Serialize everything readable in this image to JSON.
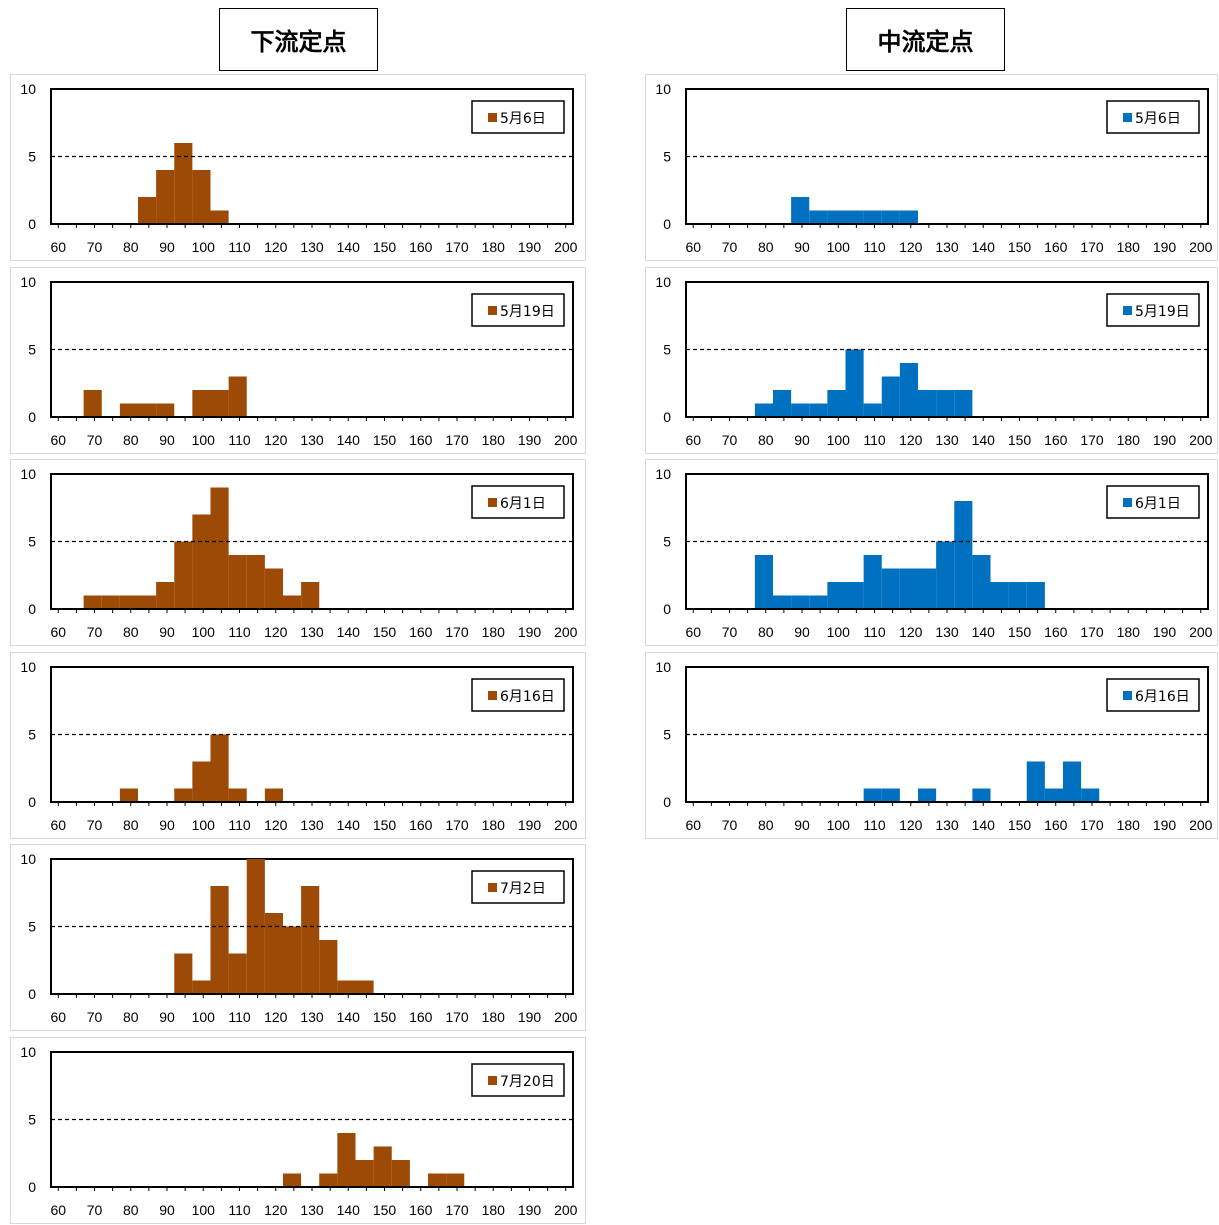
{
  "columns": [
    {
      "title": "下流定点",
      "color": "#9C4A06"
    },
    {
      "title": "中流定点",
      "color": "#0070C0"
    }
  ],
  "chart_data": [
    {
      "type": "bar",
      "group": "下流定点",
      "legend": "5月6日",
      "bins": [
        [
          82,
          87,
          2
        ],
        [
          87,
          92,
          4
        ],
        [
          92,
          97,
          6
        ],
        [
          97,
          102,
          4
        ],
        [
          102,
          107,
          1
        ]
      ],
      "xticks": [
        60,
        70,
        80,
        90,
        100,
        110,
        120,
        130,
        140,
        150,
        160,
        170,
        180,
        190,
        200
      ],
      "yticks": [
        0,
        5,
        10
      ],
      "xlim": [
        58,
        202
      ],
      "ylim": [
        0,
        10
      ],
      "reference_line": 5
    },
    {
      "type": "bar",
      "group": "下流定点",
      "legend": "5月19日",
      "bins": [
        [
          67,
          72,
          2
        ],
        [
          77,
          82,
          1
        ],
        [
          82,
          87,
          1
        ],
        [
          87,
          92,
          1
        ],
        [
          97,
          102,
          2
        ],
        [
          102,
          107,
          2
        ],
        [
          107,
          112,
          3
        ]
      ],
      "xticks": [
        60,
        70,
        80,
        90,
        100,
        110,
        120,
        130,
        140,
        150,
        160,
        170,
        180,
        190,
        200
      ],
      "yticks": [
        0,
        5,
        10
      ],
      "xlim": [
        58,
        202
      ],
      "ylim": [
        0,
        10
      ],
      "reference_line": 5
    },
    {
      "type": "bar",
      "group": "下流定点",
      "legend": "6月1日",
      "bins": [
        [
          67,
          72,
          1
        ],
        [
          72,
          77,
          1
        ],
        [
          77,
          82,
          1
        ],
        [
          82,
          87,
          1
        ],
        [
          87,
          92,
          2
        ],
        [
          92,
          97,
          5
        ],
        [
          97,
          102,
          7
        ],
        [
          102,
          107,
          9
        ],
        [
          107,
          112,
          4
        ],
        [
          112,
          117,
          4
        ],
        [
          117,
          122,
          3
        ],
        [
          122,
          127,
          1
        ],
        [
          127,
          132,
          2
        ]
      ],
      "xticks": [
        60,
        70,
        80,
        90,
        100,
        110,
        120,
        130,
        140,
        150,
        160,
        170,
        180,
        190,
        200
      ],
      "yticks": [
        0,
        5,
        10
      ],
      "xlim": [
        58,
        202
      ],
      "ylim": [
        0,
        10
      ],
      "reference_line": 5
    },
    {
      "type": "bar",
      "group": "下流定点",
      "legend": "6月16日",
      "bins": [
        [
          77,
          82,
          1
        ],
        [
          92,
          97,
          1
        ],
        [
          97,
          102,
          3
        ],
        [
          102,
          107,
          5
        ],
        [
          107,
          112,
          1
        ],
        [
          117,
          122,
          1
        ]
      ],
      "xticks": [
        60,
        70,
        80,
        90,
        100,
        110,
        120,
        130,
        140,
        150,
        160,
        170,
        180,
        190,
        200
      ],
      "yticks": [
        0,
        5,
        10
      ],
      "xlim": [
        58,
        202
      ],
      "ylim": [
        0,
        10
      ],
      "reference_line": 5
    },
    {
      "type": "bar",
      "group": "下流定点",
      "legend": "7月2日",
      "bins": [
        [
          92,
          97,
          3
        ],
        [
          97,
          102,
          1
        ],
        [
          102,
          107,
          8
        ],
        [
          107,
          112,
          3
        ],
        [
          112,
          117,
          10
        ],
        [
          117,
          122,
          6
        ],
        [
          122,
          127,
          5
        ],
        [
          127,
          132,
          8
        ],
        [
          132,
          137,
          4
        ],
        [
          137,
          142,
          1
        ],
        [
          142,
          147,
          1
        ]
      ],
      "xticks": [
        60,
        70,
        80,
        90,
        100,
        110,
        120,
        130,
        140,
        150,
        160,
        170,
        180,
        190,
        200
      ],
      "yticks": [
        0,
        5,
        10
      ],
      "xlim": [
        58,
        202
      ],
      "ylim": [
        0,
        10
      ],
      "reference_line": 5
    },
    {
      "type": "bar",
      "group": "下流定点",
      "legend": "7月20日",
      "bins": [
        [
          122,
          127,
          1
        ],
        [
          132,
          137,
          1
        ],
        [
          137,
          142,
          4
        ],
        [
          142,
          147,
          2
        ],
        [
          147,
          152,
          3
        ],
        [
          152,
          157,
          2
        ],
        [
          162,
          167,
          1
        ],
        [
          167,
          172,
          1
        ]
      ],
      "xticks": [
        60,
        70,
        80,
        90,
        100,
        110,
        120,
        130,
        140,
        150,
        160,
        170,
        180,
        190,
        200
      ],
      "yticks": [
        0,
        5,
        10
      ],
      "xlim": [
        58,
        202
      ],
      "ylim": [
        0,
        10
      ],
      "reference_line": 5
    },
    {
      "type": "bar",
      "group": "中流定点",
      "legend": "5月6日",
      "bins": [
        [
          87,
          92,
          2
        ],
        [
          92,
          97,
          1
        ],
        [
          97,
          102,
          1
        ],
        [
          102,
          107,
          1
        ],
        [
          107,
          112,
          1
        ],
        [
          112,
          117,
          1
        ],
        [
          117,
          122,
          1
        ]
      ],
      "xticks": [
        60,
        70,
        80,
        90,
        100,
        110,
        120,
        130,
        140,
        150,
        160,
        170,
        180,
        190,
        200
      ],
      "yticks": [
        0,
        5,
        10
      ],
      "xlim": [
        58,
        202
      ],
      "ylim": [
        0,
        10
      ],
      "reference_line": 5
    },
    {
      "type": "bar",
      "group": "中流定点",
      "legend": "5月19日",
      "bins": [
        [
          77,
          82,
          1
        ],
        [
          82,
          87,
          2
        ],
        [
          87,
          92,
          1
        ],
        [
          92,
          97,
          1
        ],
        [
          97,
          102,
          2
        ],
        [
          102,
          107,
          5
        ],
        [
          107,
          112,
          1
        ],
        [
          112,
          117,
          3
        ],
        [
          117,
          122,
          4
        ],
        [
          122,
          127,
          2
        ],
        [
          127,
          132,
          2
        ],
        [
          132,
          137,
          2
        ]
      ],
      "xticks": [
        60,
        70,
        80,
        90,
        100,
        110,
        120,
        130,
        140,
        150,
        160,
        170,
        180,
        190,
        200
      ],
      "yticks": [
        0,
        5,
        10
      ],
      "xlim": [
        58,
        202
      ],
      "ylim": [
        0,
        10
      ],
      "reference_line": 5
    },
    {
      "type": "bar",
      "group": "中流定点",
      "legend": "6月1日",
      "bins": [
        [
          77,
          82,
          4
        ],
        [
          82,
          87,
          1
        ],
        [
          87,
          92,
          1
        ],
        [
          92,
          97,
          1
        ],
        [
          97,
          102,
          2
        ],
        [
          102,
          107,
          2
        ],
        [
          107,
          112,
          4
        ],
        [
          112,
          117,
          3
        ],
        [
          117,
          122,
          3
        ],
        [
          122,
          127,
          3
        ],
        [
          127,
          132,
          5
        ],
        [
          132,
          137,
          8
        ],
        [
          137,
          142,
          4
        ],
        [
          142,
          147,
          2
        ],
        [
          147,
          152,
          2
        ],
        [
          152,
          157,
          2
        ]
      ],
      "xticks": [
        60,
        70,
        80,
        90,
        100,
        110,
        120,
        130,
        140,
        150,
        160,
        170,
        180,
        190,
        200
      ],
      "yticks": [
        0,
        5,
        10
      ],
      "xlim": [
        58,
        202
      ],
      "ylim": [
        0,
        10
      ],
      "reference_line": 5
    },
    {
      "type": "bar",
      "group": "中流定点",
      "legend": "6月16日",
      "bins": [
        [
          107,
          112,
          1
        ],
        [
          112,
          117,
          1
        ],
        [
          122,
          127,
          1
        ],
        [
          137,
          142,
          1
        ],
        [
          152,
          157,
          3
        ],
        [
          157,
          162,
          1
        ],
        [
          162,
          167,
          3
        ],
        [
          167,
          172,
          1
        ]
      ],
      "xticks": [
        60,
        70,
        80,
        90,
        100,
        110,
        120,
        130,
        140,
        150,
        160,
        170,
        180,
        190,
        200
      ],
      "yticks": [
        0,
        5,
        10
      ],
      "xlim": [
        58,
        202
      ],
      "ylim": [
        0,
        10
      ],
      "reference_line": 5
    }
  ]
}
